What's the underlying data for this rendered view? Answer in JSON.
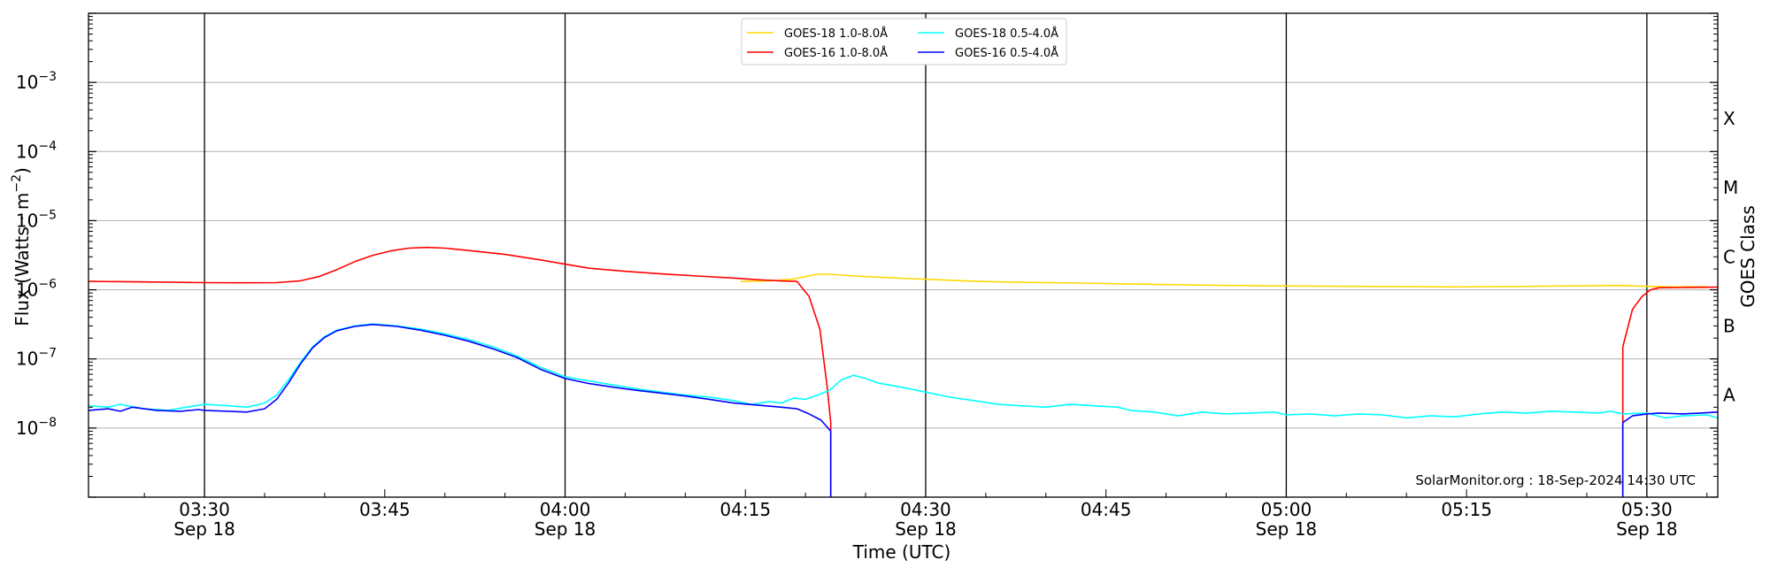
{
  "chart_data": {
    "type": "line",
    "xlabel": "Time (UTC)",
    "ylabel": "Flux (Watts · m",
    "ylabel_sup": "−2",
    "ylabel_close": ")",
    "right_label": "GOES Class",
    "yscale": "log",
    "x_range_min": [
      3.0,
      3.0,
      3.0
    ],
    "xlim_min": [
      200.35,
      335.9
    ],
    "ylim": [
      1e-09,
      0.01
    ],
    "grid": "horizontal",
    "x_ticks": [
      {
        "t": 210,
        "time": "03:30",
        "date": "Sep 18"
      },
      {
        "t": 225,
        "time": "03:45",
        "date": ""
      },
      {
        "t": 240,
        "time": "04:00",
        "date": "Sep 18"
      },
      {
        "t": 255,
        "time": "04:15",
        "date": ""
      },
      {
        "t": 270,
        "time": "04:30",
        "date": "Sep 18"
      },
      {
        "t": 285,
        "time": "04:45",
        "date": ""
      },
      {
        "t": 300,
        "time": "05:00",
        "date": "Sep 18"
      },
      {
        "t": 315,
        "time": "05:15",
        "date": ""
      },
      {
        "t": 330,
        "time": "05:30",
        "date": "Sep 18"
      }
    ],
    "vlines_min": [
      210,
      240,
      270,
      300,
      330
    ],
    "y_ticks": [
      {
        "exp": -8,
        "base": "10",
        "sup": "−8"
      },
      {
        "exp": -7,
        "base": "10",
        "sup": "−7"
      },
      {
        "exp": -6,
        "base": "10",
        "sup": "−6"
      },
      {
        "exp": -5,
        "base": "10",
        "sup": "−5"
      },
      {
        "exp": -4,
        "base": "10",
        "sup": "−4"
      },
      {
        "exp": -3,
        "base": "10",
        "sup": "−3"
      }
    ],
    "goes_classes": [
      {
        "label": "A",
        "value": 3e-08
      },
      {
        "label": "B",
        "value": 3e-07
      },
      {
        "label": "C",
        "value": 3e-06
      },
      {
        "label": "M",
        "value": 3e-05
      },
      {
        "label": "X",
        "value": 0.0003
      }
    ],
    "legend_position": "top-center",
    "series": [
      {
        "name": "GOES-18 1.0-8.0Å",
        "color": "#ffd700",
        "points": [
          [
            254.6,
            1.32e-06
          ],
          [
            256,
            1.33e-06
          ],
          [
            257.5,
            1.36e-06
          ],
          [
            259,
            1.43e-06
          ],
          [
            260,
            1.55e-06
          ],
          [
            261,
            1.68e-06
          ],
          [
            262,
            1.68e-06
          ],
          [
            263,
            1.63e-06
          ],
          [
            265,
            1.55e-06
          ],
          [
            268,
            1.47e-06
          ],
          [
            271,
            1.4e-06
          ],
          [
            274,
            1.33e-06
          ],
          [
            277,
            1.29e-06
          ],
          [
            280,
            1.27e-06
          ],
          [
            283,
            1.25e-06
          ],
          [
            286,
            1.22e-06
          ],
          [
            290,
            1.19e-06
          ],
          [
            294,
            1.16e-06
          ],
          [
            298,
            1.14e-06
          ],
          [
            302,
            1.13e-06
          ],
          [
            306,
            1.12e-06
          ],
          [
            310,
            1.11e-06
          ],
          [
            314,
            1.1e-06
          ],
          [
            318,
            1.11e-06
          ],
          [
            322,
            1.13e-06
          ],
          [
            325,
            1.14e-06
          ],
          [
            328,
            1.15e-06
          ],
          [
            330,
            1.12e-06
          ],
          [
            332,
            1.1e-06
          ],
          [
            335,
            1.11e-06
          ]
        ]
      },
      {
        "name": "GOES-16 1.0-8.0Å",
        "color": "#ff0000",
        "points": [
          [
            200.35,
            1.32e-06
          ],
          [
            205,
            1.3e-06
          ],
          [
            210,
            1.27e-06
          ],
          [
            213,
            1.26e-06
          ],
          [
            216,
            1.27e-06
          ],
          [
            218,
            1.35e-06
          ],
          [
            219.5,
            1.55e-06
          ],
          [
            221,
            1.95e-06
          ],
          [
            222.5,
            2.55e-06
          ],
          [
            224,
            3.15e-06
          ],
          [
            225.5,
            3.65e-06
          ],
          [
            227,
            4e-06
          ],
          [
            228.5,
            4.1e-06
          ],
          [
            230,
            4e-06
          ],
          [
            232,
            3.7e-06
          ],
          [
            235,
            3.25e-06
          ],
          [
            238,
            2.7e-06
          ],
          [
            240,
            2.35e-06
          ],
          [
            242,
            2.05e-06
          ],
          [
            245,
            1.85e-06
          ],
          [
            248,
            1.7e-06
          ],
          [
            251,
            1.58e-06
          ],
          [
            254,
            1.48e-06
          ],
          [
            256,
            1.4e-06
          ],
          [
            258,
            1.34e-06
          ],
          [
            259.3,
            1.32e-06
          ],
          [
            260.3,
            8e-07
          ],
          [
            261.2,
            2.7e-07
          ],
          [
            261.8,
            4e-08
          ],
          [
            262.1,
            1.2e-08
          ],
          [
            262.1,
            1e-09
          ]
        ]
      },
      {
        "name": "GOES-16 1.0-8.0Å",
        "color": "#ff0000",
        "points": [
          [
            328,
            1e-09
          ],
          [
            328,
            1.5e-07
          ],
          [
            328.8,
            5.2e-07
          ],
          [
            329.6,
            8e-07
          ],
          [
            330.3,
            1e-06
          ],
          [
            331,
            1.07e-06
          ],
          [
            333,
            1.08e-06
          ],
          [
            335.9,
            1.09e-06
          ]
        ]
      },
      {
        "name": "GOES-18 0.5-4.0Å",
        "color": "#00ffff",
        "points": [
          [
            200.35,
            2.1e-08
          ],
          [
            202,
            2e-08
          ],
          [
            203,
            2.2e-08
          ],
          [
            205,
            1.9e-08
          ],
          [
            207,
            1.8e-08
          ],
          [
            208.5,
            2e-08
          ],
          [
            210,
            2.2e-08
          ],
          [
            212,
            2.1e-08
          ],
          [
            213.5,
            2e-08
          ],
          [
            215,
            2.3e-08
          ],
          [
            216,
            3e-08
          ],
          [
            217,
            5e-08
          ],
          [
            218,
            9e-08
          ],
          [
            219,
            1.5e-07
          ],
          [
            220,
            2.1e-07
          ],
          [
            221,
            2.6e-07
          ],
          [
            222.5,
            3e-07
          ],
          [
            224,
            3.2e-07
          ],
          [
            226,
            3e-07
          ],
          [
            228,
            2.7e-07
          ],
          [
            230,
            2.3e-07
          ],
          [
            232,
            1.9e-07
          ],
          [
            234,
            1.5e-07
          ],
          [
            236,
            1.1e-07
          ],
          [
            238,
            7.5e-08
          ],
          [
            240,
            5.5e-08
          ],
          [
            242,
            4.8e-08
          ],
          [
            244,
            4.2e-08
          ],
          [
            246,
            3.7e-08
          ],
          [
            248,
            3.3e-08
          ],
          [
            250,
            3e-08
          ],
          [
            252,
            2.8e-08
          ],
          [
            254,
            2.5e-08
          ],
          [
            255.5,
            2.2e-08
          ],
          [
            257,
            2.4e-08
          ],
          [
            258,
            2.3e-08
          ],
          [
            259,
            2.7e-08
          ],
          [
            260,
            2.6e-08
          ],
          [
            261,
            3e-08
          ],
          [
            262,
            3.5e-08
          ],
          [
            263,
            5e-08
          ],
          [
            264,
            5.8e-08
          ],
          [
            265,
            5.2e-08
          ],
          [
            266,
            4.5e-08
          ],
          [
            268,
            3.9e-08
          ],
          [
            270,
            3.3e-08
          ],
          [
            272,
            2.8e-08
          ],
          [
            274,
            2.5e-08
          ],
          [
            276,
            2.2e-08
          ],
          [
            278,
            2.1e-08
          ],
          [
            280,
            2e-08
          ],
          [
            282,
            2.2e-08
          ],
          [
            284,
            2.1e-08
          ],
          [
            286,
            2e-08
          ],
          [
            287,
            1.8e-08
          ],
          [
            289,
            1.7e-08
          ],
          [
            291,
            1.5e-08
          ],
          [
            293,
            1.7e-08
          ],
          [
            295,
            1.6e-08
          ],
          [
            297,
            1.65e-08
          ],
          [
            299,
            1.7e-08
          ],
          [
            300,
            1.55e-08
          ],
          [
            302,
            1.6e-08
          ],
          [
            304,
            1.5e-08
          ],
          [
            306,
            1.6e-08
          ],
          [
            308,
            1.55e-08
          ],
          [
            310,
            1.4e-08
          ],
          [
            312,
            1.5e-08
          ],
          [
            314,
            1.45e-08
          ],
          [
            316,
            1.6e-08
          ],
          [
            318,
            1.7e-08
          ],
          [
            320,
            1.65e-08
          ],
          [
            322,
            1.75e-08
          ],
          [
            324,
            1.7e-08
          ],
          [
            326,
            1.65e-08
          ],
          [
            327,
            1.75e-08
          ],
          [
            328,
            1.6e-08
          ],
          [
            330,
            1.65e-08
          ],
          [
            331.5,
            1.4e-08
          ],
          [
            333,
            1.5e-08
          ],
          [
            335,
            1.55e-08
          ],
          [
            335.9,
            1.4e-08
          ]
        ]
      },
      {
        "name": "GOES-16 0.5-4.0Å",
        "color": "#0000ff",
        "points": [
          [
            200.35,
            1.8e-08
          ],
          [
            202,
            1.9e-08
          ],
          [
            203,
            1.75e-08
          ],
          [
            204,
            2e-08
          ],
          [
            206,
            1.8e-08
          ],
          [
            208,
            1.75e-08
          ],
          [
            209.5,
            1.85e-08
          ],
          [
            210,
            1.8e-08
          ],
          [
            212,
            1.75e-08
          ],
          [
            213.5,
            1.7e-08
          ],
          [
            215,
            1.9e-08
          ],
          [
            216,
            2.6e-08
          ],
          [
            217,
            4.5e-08
          ],
          [
            218,
            8.5e-08
          ],
          [
            219,
            1.45e-07
          ],
          [
            220,
            2.05e-07
          ],
          [
            221,
            2.55e-07
          ],
          [
            222.5,
            2.95e-07
          ],
          [
            224,
            3.15e-07
          ],
          [
            226,
            2.95e-07
          ],
          [
            228,
            2.6e-07
          ],
          [
            230,
            2.2e-07
          ],
          [
            232,
            1.8e-07
          ],
          [
            234,
            1.4e-07
          ],
          [
            236,
            1.05e-07
          ],
          [
            238,
            7e-08
          ],
          [
            240,
            5.2e-08
          ],
          [
            242,
            4.4e-08
          ],
          [
            244,
            3.9e-08
          ],
          [
            246,
            3.5e-08
          ],
          [
            248,
            3.2e-08
          ],
          [
            250,
            2.9e-08
          ],
          [
            252,
            2.6e-08
          ],
          [
            254,
            2.3e-08
          ],
          [
            256,
            2.15e-08
          ],
          [
            258,
            2e-08
          ],
          [
            259.3,
            1.9e-08
          ],
          [
            260.3,
            1.6e-08
          ],
          [
            261.3,
            1.3e-08
          ],
          [
            262.1,
            9e-09
          ],
          [
            262.1,
            1e-09
          ]
        ]
      },
      {
        "name": "GOES-16 0.5-4.0Å",
        "color": "#0000ff",
        "points": [
          [
            328,
            1e-09
          ],
          [
            328,
            1.2e-08
          ],
          [
            328.8,
            1.5e-08
          ],
          [
            330,
            1.6e-08
          ],
          [
            331,
            1.65e-08
          ],
          [
            333,
            1.6e-08
          ],
          [
            334.5,
            1.65e-08
          ],
          [
            335.9,
            1.7e-08
          ]
        ]
      }
    ],
    "legend": [
      {
        "label": "GOES-18 1.0-8.0Å",
        "color": "#ffd700"
      },
      {
        "label": "GOES-16 1.0-8.0Å",
        "color": "#ff0000"
      },
      {
        "label": "GOES-18 0.5-4.0Å",
        "color": "#00ffff"
      },
      {
        "label": "GOES-16 0.5-4.0Å",
        "color": "#0000ff"
      }
    ],
    "credit": "SolarMonitor.org : 18-Sep-2024 14:30 UTC"
  }
}
